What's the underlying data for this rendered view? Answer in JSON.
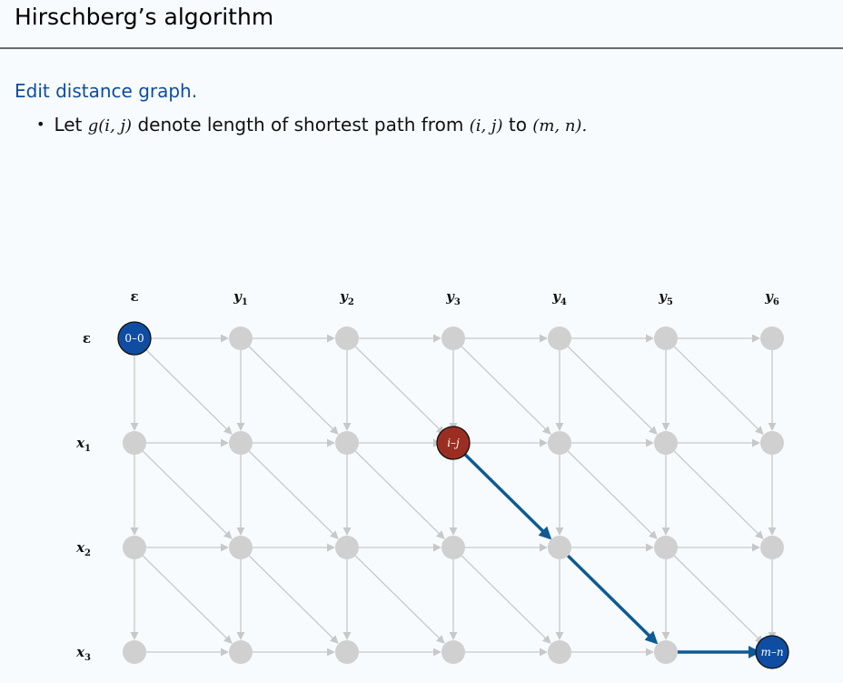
{
  "header": {
    "title": "Hirschberg’s algorithm"
  },
  "section": {
    "heading": "Edit distance graph."
  },
  "bullet": {
    "lead": "Let",
    "g": "g(i, j)",
    "mid": "denote length of shortest path from",
    "from": "(i, j)",
    "to_word": "to",
    "target": "(m, n).",
    "marker": "•"
  },
  "graph": {
    "col_headers": [
      {
        "base": "ε",
        "sub": ""
      },
      {
        "base": "y",
        "sub": "1"
      },
      {
        "base": "y",
        "sub": "2"
      },
      {
        "base": "y",
        "sub": "3"
      },
      {
        "base": "y",
        "sub": "4"
      },
      {
        "base": "y",
        "sub": "5"
      },
      {
        "base": "y",
        "sub": "6"
      }
    ],
    "row_headers": [
      {
        "base": "ε",
        "sub": ""
      },
      {
        "base": "x",
        "sub": "1"
      },
      {
        "base": "x",
        "sub": "2"
      },
      {
        "base": "x",
        "sub": "3"
      }
    ],
    "start_node": {
      "row": 0,
      "col": 0,
      "label": "0–0"
    },
    "mid_node": {
      "row": 1,
      "col": 3,
      "label": "i–j"
    },
    "end_node": {
      "row": 3,
      "col": 6,
      "label": "m–n"
    },
    "highlight_path": [
      [
        1,
        3
      ],
      [
        2,
        4
      ],
      [
        3,
        5
      ],
      [
        3,
        6
      ]
    ],
    "colors": {
      "node_gray": "#d0d0d0",
      "edge_gray": "#c8c8c8",
      "start_fill": "#0e4da2",
      "mid_fill": "#9b2e22",
      "end_fill": "#0e4da2",
      "path_blue": "#0e5a93"
    }
  }
}
